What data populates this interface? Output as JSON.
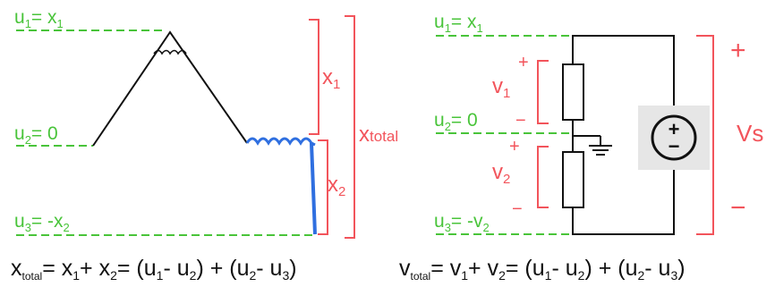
{
  "left_diagram": {
    "u1": {
      "main": "u",
      "sub": "1",
      "rest": "= x",
      "sub2": "1"
    },
    "u2": {
      "main": "u",
      "sub": "2",
      "rest": "= 0"
    },
    "u3": {
      "main": "u",
      "sub": "3",
      "rest": "= -x",
      "sub2": "2"
    },
    "x1": {
      "main": "x",
      "sub": "1"
    },
    "x2": {
      "main": "x",
      "sub": "2"
    },
    "xtotal": {
      "main": "x",
      "sub": "total"
    }
  },
  "right_diagram": {
    "u1": {
      "main": "u",
      "sub": "1",
      "rest": "= x",
      "sub2": "1"
    },
    "u2": {
      "main": "u",
      "sub": "2",
      "rest": "= 0"
    },
    "u3": {
      "main": "u",
      "sub": "3",
      "rest": "= -v",
      "sub2": "2"
    },
    "v1": {
      "main": "v",
      "sub": "1"
    },
    "v2": {
      "main": "v",
      "sub": "2"
    },
    "vs": "Vs",
    "plus": "+",
    "minus": "−",
    "source_plus": "+",
    "source_minus": "−"
  },
  "equations": {
    "left": {
      "lhs": "x",
      "lhs_sub": "total",
      "t1": "= x",
      "s1": "1",
      "t2": "+ x",
      "s2": "2",
      "t3": "= (u",
      "s3": "1",
      "t4": "- u",
      "s4": "2",
      "t5": ") + (u",
      "s5": "2",
      "t6": "- u",
      "s6": "3",
      "t7": ")"
    },
    "right": {
      "lhs": "v",
      "lhs_sub": "total",
      "t1": "= v",
      "s1": "1",
      "t2": "+ v",
      "s2": "2",
      "t3": "= (u",
      "s3": "1",
      "t4": "- u",
      "s4": "2",
      "t5": ") + (u",
      "s5": "2",
      "t6": "- u",
      "s6": "3",
      "t7": ")"
    }
  },
  "colors": {
    "green": "#49c43a",
    "red": "#f2545b",
    "blue": "#2f6fe0",
    "black": "#111111",
    "source_bg": "#e6e6e6"
  }
}
